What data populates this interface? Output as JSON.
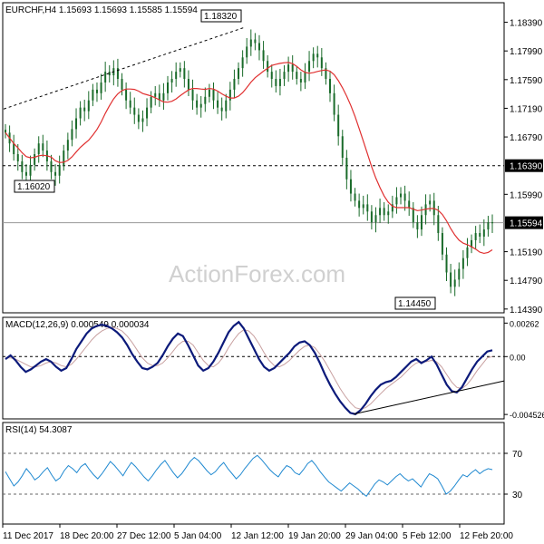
{
  "chart_data": [
    {
      "type": "candlestick",
      "title": "EURCHF,H4  1.15693 1.15693 1.15585 1.15594",
      "watermark": "ActionForex.com",
      "y_ticks": [
        "1.18390",
        "1.17990",
        "1.17590",
        "1.17190",
        "1.16790",
        "1.15990",
        "1.15190",
        "1.14790",
        "1.14390"
      ],
      "ylim": [
        1.1435,
        1.1865
      ],
      "levels": [
        {
          "value": 1.1639,
          "label": "1.16390",
          "style": "dashed"
        },
        {
          "value": 1.15594,
          "label": "1.15594",
          "style": "solid"
        }
      ],
      "annotations": [
        {
          "label": "1.18320",
          "value": 1.1832
        },
        {
          "label": "1.16020",
          "value": 1.1602
        },
        {
          "label": "1.14450",
          "value": 1.1445
        }
      ],
      "trendline": {
        "from": 1.1718,
        "to": 1.1832,
        "style": "dashed"
      },
      "close_series": [
        1.1685,
        1.167,
        1.1655,
        1.1645,
        1.163,
        1.1625,
        1.164,
        1.1655,
        1.167,
        1.166,
        1.1645,
        1.163,
        1.1625,
        1.164,
        1.166,
        1.1675,
        1.169,
        1.1705,
        1.172,
        1.1715,
        1.173,
        1.1745,
        1.174,
        1.1755,
        1.177,
        1.1765,
        1.1775,
        1.176,
        1.1745,
        1.173,
        1.172,
        1.171,
        1.17,
        1.1705,
        1.172,
        1.1735,
        1.174,
        1.173,
        1.174,
        1.1755,
        1.176,
        1.177,
        1.1775,
        1.176,
        1.1745,
        1.173,
        1.172,
        1.1725,
        1.1735,
        1.1745,
        1.173,
        1.172,
        1.1715,
        1.173,
        1.1745,
        1.176,
        1.1775,
        1.179,
        1.1805,
        1.1815,
        1.181,
        1.18,
        1.1785,
        1.177,
        1.176,
        1.175,
        1.176,
        1.177,
        1.178,
        1.177,
        1.176,
        1.1755,
        1.177,
        1.1785,
        1.1795,
        1.179,
        1.1775,
        1.176,
        1.174,
        1.171,
        1.168,
        1.165,
        1.162,
        1.16,
        1.159,
        1.158,
        1.1585,
        1.1575,
        1.156,
        1.157,
        1.158,
        1.157,
        1.1575,
        1.1585,
        1.1595,
        1.16,
        1.159,
        1.158,
        1.156,
        1.155,
        1.157,
        1.1585,
        1.159,
        1.157,
        1.1545,
        1.1515,
        1.149,
        1.147,
        1.148,
        1.1495,
        1.151,
        1.1525,
        1.1535,
        1.1545,
        1.154,
        1.155,
        1.156,
        1.1559
      ],
      "ma_label_color": "#e03030"
    },
    {
      "type": "line",
      "title": "MACD(12,26,9) 0.000549 0.000034",
      "y_ticks": [
        "0.00262",
        "0.00",
        "-0.004526"
      ],
      "ylim": [
        -0.0048,
        0.003
      ],
      "zero_line": true,
      "macd_series": [
        -0.0002,
        0.0001,
        -0.0003,
        -0.0008,
        -0.0012,
        -0.001,
        -0.0007,
        -0.0004,
        -0.0002,
        -0.0004,
        -0.0008,
        -0.0011,
        -0.0009,
        -0.0002,
        0.0006,
        0.0012,
        0.0018,
        0.0022,
        0.0024,
        0.0025,
        0.0024,
        0.0022,
        0.0019,
        0.0015,
        0.0009,
        0.0002,
        -0.0004,
        -0.0009,
        -0.001,
        -0.0008,
        -0.0005,
        0.0001,
        0.0008,
        0.0014,
        0.0018,
        0.0016,
        0.0009,
        0.0001,
        -0.0007,
        -0.0011,
        -0.0009,
        -0.0004,
        0.0003,
        0.0011,
        0.0019,
        0.0024,
        0.0027,
        0.0022,
        0.0014,
        0.0006,
        -0.0002,
        -0.0008,
        -0.0011,
        -0.0009,
        -0.0005,
        -0.0001,
        0.0003,
        0.0008,
        0.0011,
        0.0012,
        0.0009,
        0.0003,
        -0.0005,
        -0.0014,
        -0.0022,
        -0.0029,
        -0.0035,
        -0.004,
        -0.0044,
        -0.0045,
        -0.0042,
        -0.0037,
        -0.0031,
        -0.0026,
        -0.0022,
        -0.002,
        -0.0019,
        -0.0016,
        -0.0012,
        -0.0008,
        -0.0004,
        -0.0002,
        -0.0005,
        -0.0003,
        0.0,
        -0.0006,
        -0.0014,
        -0.0022,
        -0.0027,
        -0.0028,
        -0.0024,
        -0.0017,
        -0.001,
        -0.0004,
        0.0,
        0.0004,
        0.0005
      ],
      "signal_series": [
        -0.0001,
        -0.0001,
        -0.0002,
        -0.0004,
        -0.0006,
        -0.0008,
        -0.0008,
        -0.0007,
        -0.0005,
        -0.0004,
        -0.0005,
        -0.0007,
        -0.0008,
        -0.0006,
        -0.0002,
        0.0003,
        0.0008,
        0.0013,
        0.0017,
        0.002,
        0.0022,
        0.0023,
        0.0022,
        0.002,
        0.0016,
        0.0011,
        0.0005,
        -0.0001,
        -0.0005,
        -0.0007,
        -0.0007,
        -0.0005,
        -0.0001,
        0.0004,
        0.0009,
        0.0012,
        0.0012,
        0.0009,
        0.0003,
        -0.0003,
        -0.0007,
        -0.0008,
        -0.0005,
        0.0,
        0.0007,
        0.0013,
        0.0018,
        0.0021,
        0.002,
        0.0016,
        0.001,
        0.0003,
        -0.0003,
        -0.0007,
        -0.0008,
        -0.0006,
        -0.0003,
        0.0001,
        0.0005,
        0.0008,
        0.0009,
        0.0007,
        0.0002,
        -0.0004,
        -0.0011,
        -0.0018,
        -0.0025,
        -0.0031,
        -0.0036,
        -0.004,
        -0.0041,
        -0.004,
        -0.0037,
        -0.0033,
        -0.0029,
        -0.0025,
        -0.0022,
        -0.0019,
        -0.0016,
        -0.0012,
        -0.0008,
        -0.0005,
        -0.0004,
        -0.0004,
        -0.0003,
        -0.0004,
        -0.0008,
        -0.0014,
        -0.002,
        -0.0024,
        -0.0025,
        -0.0022,
        -0.0017,
        -0.0011,
        -0.0006,
        -0.0001,
        0.0
      ],
      "trendline": {
        "from": -0.0045,
        "to": -0.0019,
        "style": "solid"
      }
    },
    {
      "type": "line",
      "title": "RSI(14) 54.3087",
      "y_ticks": [
        "70",
        "30"
      ],
      "ylim": [
        0,
        100
      ],
      "levels": [
        70,
        30
      ],
      "rsi_series": [
        52,
        45,
        38,
        42,
        48,
        55,
        50,
        44,
        47,
        52,
        56,
        49,
        43,
        46,
        53,
        58,
        55,
        51,
        57,
        60,
        54,
        49,
        45,
        50,
        56,
        62,
        58,
        53,
        48,
        55,
        61,
        57,
        52,
        47,
        43,
        48,
        54,
        59,
        63,
        57,
        51,
        46,
        50,
        56,
        62,
        66,
        63,
        58,
        53,
        49,
        52,
        57,
        61,
        55,
        50,
        45,
        49,
        55,
        60,
        65,
        68,
        64,
        59,
        54,
        50,
        47,
        53,
        58,
        56,
        51,
        49,
        54,
        60,
        63,
        58,
        52,
        47,
        42,
        39,
        36,
        33,
        37,
        41,
        38,
        35,
        31,
        28,
        34,
        40,
        44,
        42,
        39,
        43,
        47,
        50,
        46,
        43,
        45,
        41,
        37,
        44,
        50,
        48,
        45,
        38,
        30,
        33,
        38,
        44,
        49,
        47,
        51,
        54,
        50,
        53,
        55,
        54
      ]
    }
  ],
  "x_labels": [
    "11 Dec 2017",
    "18 Dec 20:00",
    "27 Dec 12:00",
    "5 Jan 04:00",
    "12 Jan 12:00",
    "19 Jan 20:00",
    "29 Jan 04:00",
    "5 Feb 12:00",
    "12 Feb 20:00"
  ],
  "colors": {
    "candle": "#1a6b2a",
    "ma": "#e03030",
    "macd": "#0c1a7a",
    "signal": "#c8a0a0",
    "rsi": "#1e88d0",
    "grid": "#000000"
  }
}
